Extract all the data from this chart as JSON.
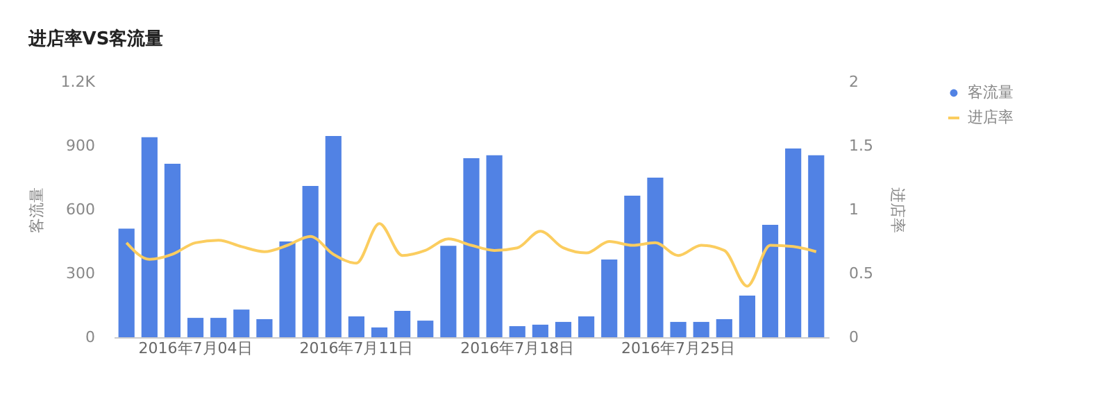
{
  "chart_data": {
    "type": "bar",
    "title": "进店率VS客流量",
    "ylabel": "客流量",
    "y2label": "进店率",
    "categories": [
      null,
      null,
      null,
      "2016年7月04日",
      null,
      null,
      null,
      null,
      null,
      null,
      "2016年7月11日",
      null,
      null,
      null,
      null,
      null,
      null,
      "2016年7月18日",
      null,
      null,
      null,
      null,
      null,
      null,
      "2016年7月25日",
      null,
      null,
      null,
      null,
      null,
      null
    ],
    "series": [
      {
        "name": "客流量",
        "color": "#5182e4",
        "values": [
          510,
          940,
          815,
          91,
          91,
          130,
          85,
          450,
          711,
          946,
          98,
          46,
          124,
          78,
          430,
          841,
          855,
          52,
          59,
          72,
          98,
          365,
          665,
          750,
          72,
          72,
          85,
          196,
          528,
          887,
          855
        ]
      },
      {
        "name": "进店率",
        "type": "line",
        "axis": "y2",
        "color": "#fbcd5f",
        "values": [
          0.74,
          0.61,
          0.65,
          0.74,
          0.76,
          0.71,
          0.67,
          0.72,
          0.79,
          0.65,
          0.58,
          0.89,
          0.64,
          0.68,
          0.77,
          0.72,
          0.68,
          0.7,
          0.83,
          0.7,
          0.66,
          0.75,
          0.72,
          0.74,
          0.64,
          0.72,
          0.68,
          0.4,
          0.72,
          0.71,
          0.67
        ]
      }
    ],
    "ylim": [
      0,
      1200
    ],
    "yticks": [
      0,
      300,
      600,
      900,
      {
        "value": 1200,
        "label": "1.2K"
      }
    ],
    "y2lim": [
      0,
      2
    ],
    "y2ticks": [
      0,
      0.5,
      1,
      1.5,
      2
    ],
    "legend": "top right",
    "grid": false
  }
}
